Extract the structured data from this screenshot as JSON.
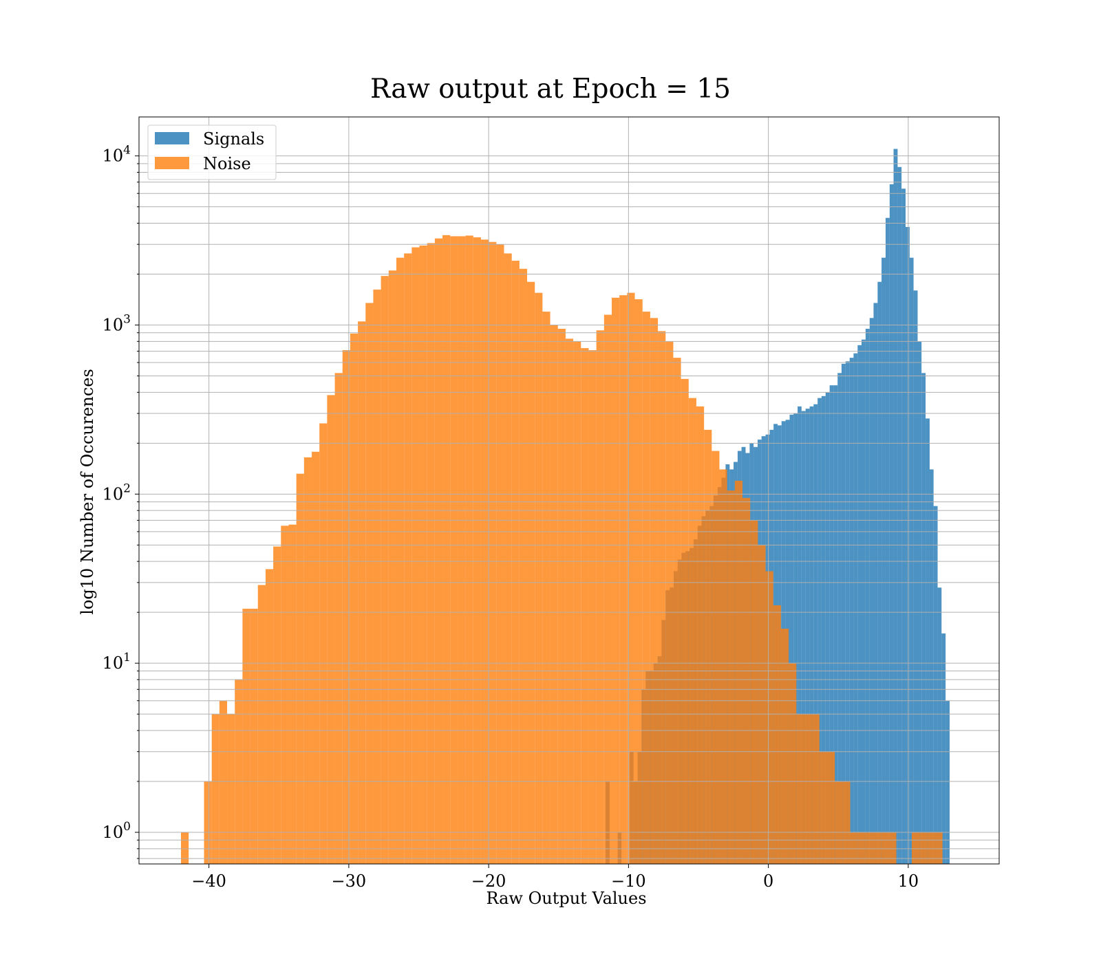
{
  "chart_data": {
    "type": "bar",
    "title": "Raw output at Epoch = 15",
    "xlabel": "Raw Output Values",
    "ylabel": "log10 Number of Occurences",
    "xlim": [
      -45,
      16.5
    ],
    "ylim": [
      0.65,
      17000
    ],
    "yscale": "log",
    "grid": true,
    "legend_position": "upper-left",
    "x_ticks": [
      {
        "value": -40,
        "label": "−40"
      },
      {
        "value": -30,
        "label": "−30"
      },
      {
        "value": -20,
        "label": "−20"
      },
      {
        "value": -10,
        "label": "−10"
      },
      {
        "value": 0,
        "label": "0"
      },
      {
        "value": 10,
        "label": "10"
      }
    ],
    "y_ticks": [
      {
        "value": 1,
        "base": "10",
        "exp": "0"
      },
      {
        "value": 10,
        "base": "10",
        "exp": "1"
      },
      {
        "value": 100,
        "base": "10",
        "exp": "2"
      },
      {
        "value": 1000,
        "base": "10",
        "exp": "3"
      },
      {
        "value": 10000,
        "base": "10",
        "exp": "4"
      }
    ],
    "series": [
      {
        "name": "Signals",
        "color": "#1f77b4",
        "opacity": 0.8,
        "bin_edges": [
          -11.64,
          -11.35,
          -11.07,
          -10.78,
          -10.5,
          -10.21,
          -9.92,
          -9.64,
          -9.35,
          -9.07,
          -8.78,
          -8.49,
          -8.21,
          -7.92,
          -7.64,
          -7.35,
          -7.06,
          -6.78,
          -6.49,
          -6.21,
          -5.92,
          -5.63,
          -5.35,
          -5.06,
          -4.78,
          -4.49,
          -4.2,
          -3.92,
          -3.63,
          -3.35,
          -3.06,
          -2.77,
          -2.49,
          -2.2,
          -1.92,
          -1.63,
          -1.34,
          -1.06,
          -0.77,
          -0.49,
          -0.2,
          0.09,
          0.37,
          0.66,
          0.94,
          1.23,
          1.52,
          1.8,
          2.09,
          2.37,
          2.66,
          2.95,
          3.23,
          3.52,
          3.8,
          4.09,
          4.38,
          4.66,
          4.95,
          5.23,
          5.52,
          5.81,
          6.09,
          6.38,
          6.66,
          6.95,
          7.24,
          7.52,
          7.81,
          8.09,
          8.38,
          8.67,
          8.95,
          9.24,
          9.52,
          9.81,
          10.1,
          10.38,
          10.67,
          10.95,
          11.24,
          11.53,
          11.81,
          12.1,
          12.38,
          12.67,
          12.96,
          13.24,
          13.53
        ],
        "counts": [
          2,
          0,
          0,
          1,
          0,
          0,
          3,
          2,
          3,
          7,
          9,
          9,
          10,
          11,
          18,
          27,
          28,
          35,
          41,
          45,
          46,
          48,
          54,
          65,
          74,
          80,
          85,
          98,
          110,
          125,
          150,
          140,
          155,
          180,
          190,
          175,
          200,
          190,
          210,
          220,
          225,
          240,
          260,
          255,
          270,
          275,
          295,
          300,
          330,
          310,
          320,
          330,
          340,
          370,
          380,
          400,
          440,
          440,
          520,
          590,
          610,
          640,
          680,
          760,
          820,
          950,
          1100,
          1350,
          1800,
          2500,
          4300,
          6800,
          11000,
          8600,
          6400,
          3800,
          2500,
          1600,
          800,
          520,
          280,
          140,
          85,
          28,
          15,
          6,
          0,
          0
        ]
      },
      {
        "name": "Noise",
        "color": "#ff7f0e",
        "opacity": 0.8,
        "bin_edges": [
          -42,
          -41.45,
          -40.9,
          -40.35,
          -39.8,
          -39.25,
          -38.7,
          -38.15,
          -37.6,
          -37.05,
          -36.5,
          -35.95,
          -35.4,
          -34.85,
          -34.3,
          -33.75,
          -33.2,
          -32.65,
          -32.1,
          -31.55,
          -31,
          -30.45,
          -29.9,
          -29.35,
          -28.8,
          -28.25,
          -27.7,
          -27.15,
          -26.6,
          -26.05,
          -25.5,
          -24.95,
          -24.4,
          -23.85,
          -23.3,
          -22.75,
          -22.2,
          -21.65,
          -21.1,
          -20.55,
          -20,
          -19.45,
          -18.9,
          -18.35,
          -17.8,
          -17.25,
          -16.7,
          -16.15,
          -15.6,
          -15.05,
          -14.5,
          -13.95,
          -13.4,
          -12.85,
          -12.3,
          -11.75,
          -11.2,
          -10.65,
          -10.1,
          -9.55,
          -9,
          -8.45,
          -7.9,
          -7.35,
          -6.8,
          -6.25,
          -5.7,
          -5.15,
          -4.6,
          -4.05,
          -3.5,
          -2.95,
          -2.4,
          -1.85,
          -1.3,
          -0.75,
          -0.2,
          0.35,
          0.9,
          1.45,
          2,
          2.55,
          3.1,
          3.65,
          4.2,
          4.75,
          5.3,
          5.85,
          6.4,
          6.95,
          7.5,
          8.05,
          8.6,
          9.15,
          9.7,
          10.25,
          10.8,
          11.35,
          11.9,
          12.45
        ],
        "counts": [
          1,
          0,
          0,
          2,
          5,
          6,
          5,
          8,
          21,
          21,
          29,
          36,
          49,
          65,
          66,
          132,
          165,
          178,
          262,
          385,
          520,
          710,
          890,
          1050,
          1350,
          1620,
          1950,
          2100,
          2500,
          2650,
          2880,
          2950,
          3050,
          3250,
          3400,
          3350,
          3350,
          3380,
          3300,
          3200,
          3100,
          3000,
          2650,
          2400,
          2150,
          1800,
          1550,
          1200,
          1000,
          950,
          830,
          800,
          730,
          710,
          930,
          1150,
          1450,
          1500,
          1550,
          1420,
          1200,
          1100,
          920,
          800,
          640,
          480,
          370,
          330,
          240,
          180,
          140,
          105,
          120,
          95,
          70,
          50,
          35,
          22,
          16,
          10,
          5,
          5,
          5,
          3,
          3,
          2,
          2,
          1,
          1,
          1,
          1,
          1,
          1,
          0,
          0,
          1,
          1,
          1,
          1
        ]
      }
    ]
  }
}
